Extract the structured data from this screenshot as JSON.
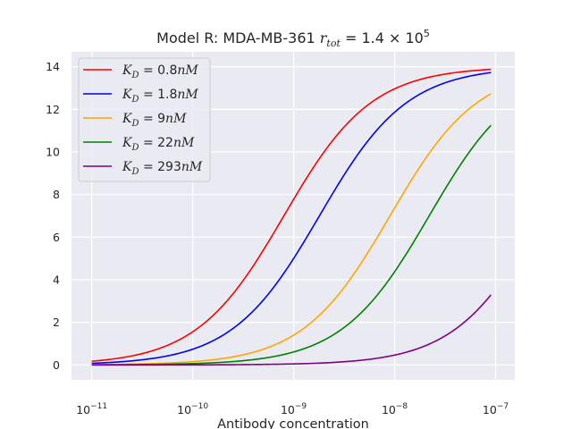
{
  "chart_data": {
    "type": "line",
    "title": "Model R: MDA-MB-361 r_tot = 1.4 × 10^5",
    "title_parts": {
      "prefix": "Model R: MDA-MB-361 ",
      "var": "r",
      "sub": "tot",
      "eq": " = 1.4 × 10",
      "exp": "5"
    },
    "xlabel": "Antibody concentration",
    "ylabel": "",
    "x_scale": "log",
    "xlim": [
      6.3e-12,
      1.55e-07
    ],
    "ylim": [
      -0.7,
      14.7
    ],
    "x_ticks": [
      {
        "base": "10",
        "exp": "−11",
        "value": 1e-11
      },
      {
        "base": "10",
        "exp": "−10",
        "value": 1e-10
      },
      {
        "base": "10",
        "exp": "−9",
        "value": 1e-09
      },
      {
        "base": "10",
        "exp": "−8",
        "value": 1e-08
      },
      {
        "base": "10",
        "exp": "−7",
        "value": 1e-07
      }
    ],
    "y_ticks": [
      "0",
      "2",
      "4",
      "6",
      "8",
      "10",
      "12",
      "14"
    ],
    "grid": true,
    "legend_position": "top-left",
    "background": "#eaeaf2",
    "grid_color": "#ffffff",
    "x_range": [
      1e-11,
      9e-08
    ],
    "series": [
      {
        "name": "K_D = 0.8nM",
        "label_var": "K",
        "label_sub": "D",
        "label_rest": " = 0.8",
        "label_unit": "nM",
        "color": "#ff0000",
        "kd": 8e-10,
        "max": 14
      },
      {
        "name": "K_D = 1.8nM",
        "label_var": "K",
        "label_sub": "D",
        "label_rest": " = 1.8",
        "label_unit": "nM",
        "color": "#0000ff",
        "kd": 1.8e-09,
        "max": 14
      },
      {
        "name": "K_D = 9nM",
        "label_var": "K",
        "label_sub": "D",
        "label_rest": " = 9",
        "label_unit": "nM",
        "color": "#ffa500",
        "kd": 9e-09,
        "max": 14
      },
      {
        "name": "K_D = 22nM",
        "label_var": "K",
        "label_sub": "D",
        "label_rest": " = 22",
        "label_unit": "nM",
        "color": "#008000",
        "kd": 2.2e-08,
        "max": 14
      },
      {
        "name": "K_D = 293nM",
        "label_var": "K",
        "label_sub": "D",
        "label_rest": " = 293",
        "label_unit": "nM",
        "color": "#800080",
        "kd": 2.93e-07,
        "max": 14
      }
    ]
  }
}
